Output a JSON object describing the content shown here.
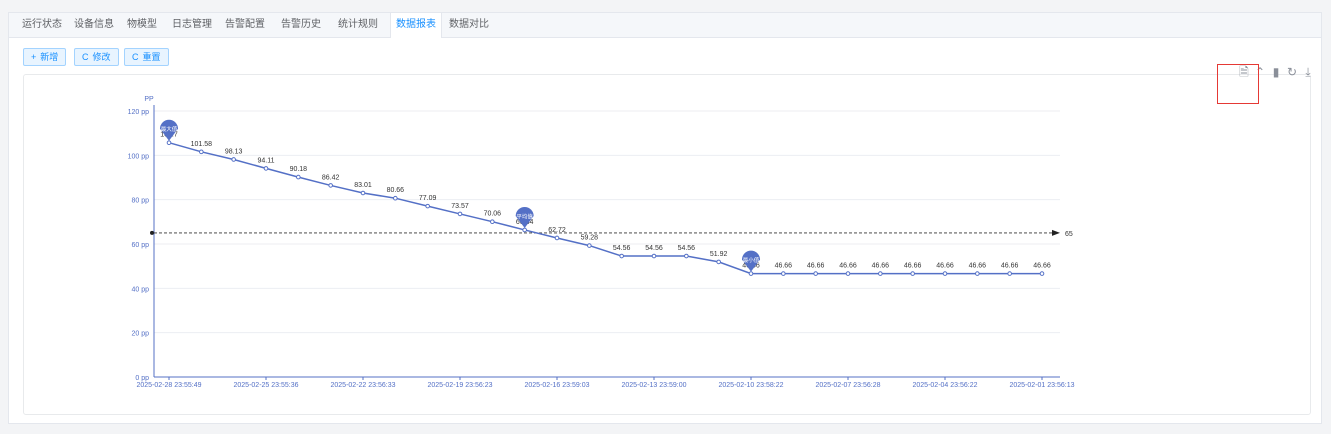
{
  "tabs": [
    {
      "label": "运行状态",
      "active": false
    },
    {
      "label": "设备信息",
      "active": false
    },
    {
      "label": "物模型",
      "active": false
    },
    {
      "label": "日志管理",
      "active": false
    },
    {
      "label": "告警配置",
      "active": false
    },
    {
      "label": "告警历史",
      "active": false
    },
    {
      "label": "统计规则",
      "active": false
    },
    {
      "label": "数据报表",
      "active": true
    },
    {
      "label": "数据对比",
      "active": false
    }
  ],
  "toolbar": {
    "add": {
      "icon": "plus-icon",
      "label": "新增"
    },
    "edit": {
      "icon": "refresh-icon",
      "label": "修改"
    },
    "reset": {
      "icon": "refresh-icon",
      "label": "重置"
    }
  },
  "chart_tools": [
    "data-view-icon",
    "line-chart-icon",
    "bar-chart-icon",
    "restore-icon",
    "download-icon"
  ],
  "colors": {
    "accent": "#1890ff",
    "line": "#5470c6",
    "highlight_box": "#e53935"
  },
  "chart_data": {
    "type": "line",
    "ylabel": "PP",
    "y_unit": " pp",
    "ylim": [
      0,
      120
    ],
    "yticks": [
      0,
      20,
      40,
      60,
      80,
      100,
      120
    ],
    "x": [
      "2025-02-28 23:55:49",
      "",
      "",
      "2025-02-25 23:55:36",
      "",
      "",
      "2025-02-22 23:56:33",
      "",
      "",
      "2025-02-19 23:56:23",
      "",
      "",
      "2025-02-16 23:59:03",
      "",
      "",
      "2025-02-13 23:59:00",
      "",
      "",
      "2025-02-10 23:58:22",
      "",
      "",
      "2025-02-07 23:56:28",
      "",
      "",
      "2025-02-04 23:56:22",
      "",
      "",
      "2025-02-01 23:56:13"
    ],
    "values": [
      105.7,
      101.58,
      98.13,
      94.11,
      90.18,
      86.42,
      83.01,
      80.66,
      77.09,
      73.57,
      70.06,
      66.34,
      62.72,
      59.28,
      54.56,
      54.56,
      54.56,
      51.92,
      46.66,
      46.66,
      46.66,
      46.66,
      46.66,
      46.66,
      46.66,
      46.66,
      46.66,
      46.66
    ],
    "markline": {
      "value": 65,
      "label": "65"
    },
    "markpoints": [
      {
        "name": "最大值",
        "index": 0
      },
      {
        "name": "平均值",
        "index": 11
      },
      {
        "name": "最小值",
        "index": 18
      }
    ],
    "grid": true
  }
}
